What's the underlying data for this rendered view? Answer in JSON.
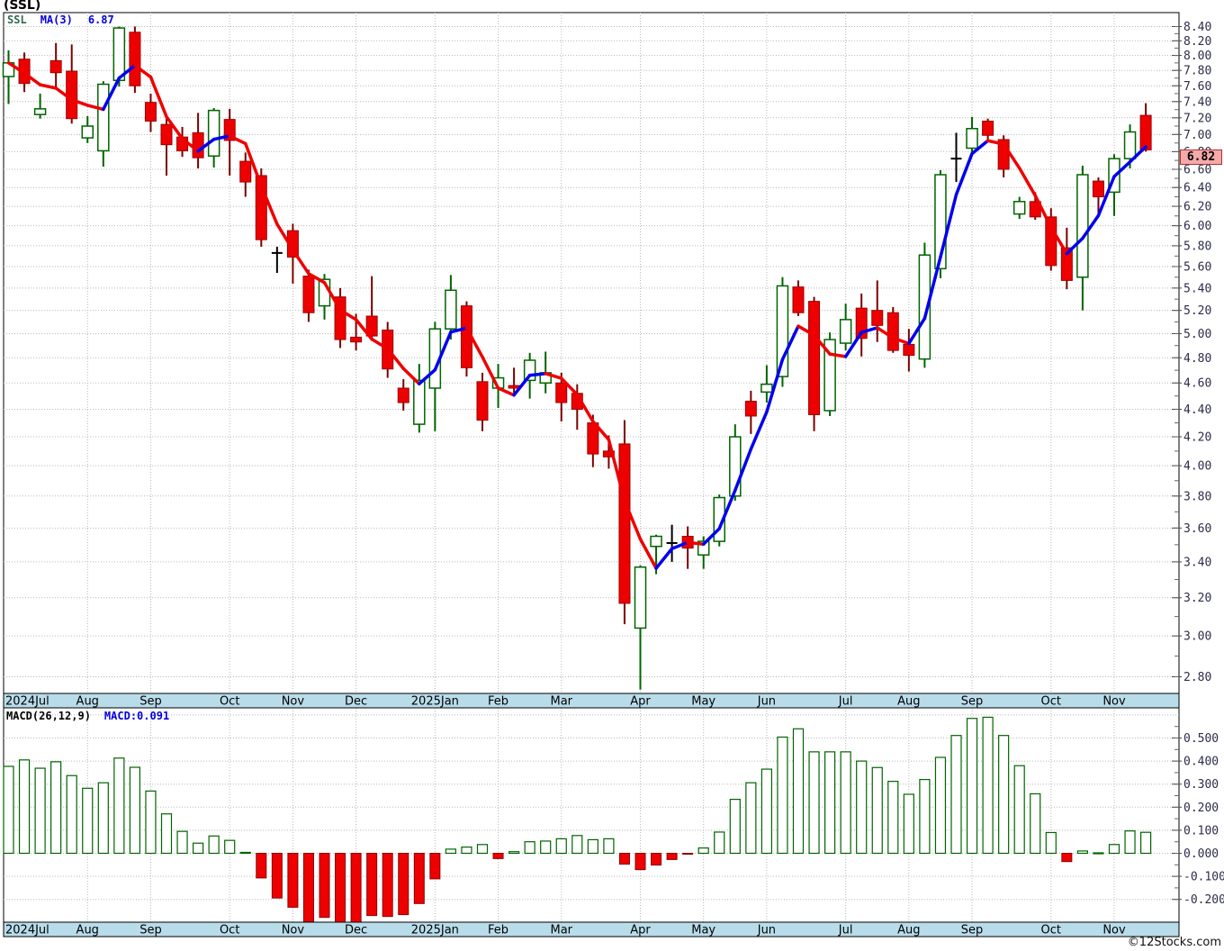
{
  "title": "(SSL)",
  "legend": {
    "symbol": "SSL",
    "ma_label": "MA(3)",
    "ma_value": "6.87"
  },
  "price_badge": "6.82",
  "macd_header": {
    "name": "MACD(26,12,9)",
    "value": "MACD:0.091"
  },
  "watermark": "©12Stocks.com",
  "colors": {
    "up_outline": "#006400",
    "down_fill": "#ee0000",
    "down_outline": "#990000",
    "down_wick": "#7a0000",
    "doji": "#000000",
    "ma_up": "#0000ee",
    "ma_down": "#ee0000",
    "band_bg": "#b9dcea",
    "grid": "#b8b8b8",
    "tick_text": "#2c2c4a",
    "badge_bg": "#f6a9a9",
    "badge_border": "#aa3333"
  },
  "chart_data": [
    {
      "type": "candlestick",
      "symbol": "SSL",
      "months": [
        {
          "label": "2024Jul",
          "bar": 0
        },
        {
          "label": "Aug",
          "bar": 5
        },
        {
          "label": "Sep",
          "bar": 9
        },
        {
          "label": "Oct",
          "bar": 14
        },
        {
          "label": "Nov",
          "bar": 18
        },
        {
          "label": "Dec",
          "bar": 22
        },
        {
          "label": "2025Jan",
          "bar": 27
        },
        {
          "label": "Feb",
          "bar": 31
        },
        {
          "label": "Mar",
          "bar": 35
        },
        {
          "label": "Apr",
          "bar": 40
        },
        {
          "label": "May",
          "bar": 44
        },
        {
          "label": "Jun",
          "bar": 48
        },
        {
          "label": "Jul",
          "bar": 53
        },
        {
          "label": "Aug",
          "bar": 57
        },
        {
          "label": "Sep",
          "bar": 61
        },
        {
          "label": "Oct",
          "bar": 66
        },
        {
          "label": "Nov",
          "bar": 70
        }
      ],
      "y_axis": {
        "scale": "log",
        "min": 2.8,
        "max": 8.4,
        "label_step": 0.2,
        "minor_tick_step": 0.1,
        "tick_labels": [
          "8.40",
          "8.20",
          "8.00",
          "7.80",
          "7.60",
          "7.40",
          "7.20",
          "7.00",
          "6.80",
          "6.60",
          "6.40",
          "6.20",
          "6.00",
          "5.80",
          "5.60",
          "5.40",
          "5.20",
          "5.00",
          "4.80",
          "4.60",
          "4.40",
          "4.20",
          "4.00",
          "3.80",
          "3.60",
          "3.40",
          "3.20",
          "3.00",
          "2.80"
        ]
      },
      "overlay": {
        "name": "MA(3)",
        "period": 3,
        "last_value": "6.87"
      },
      "last_close": 6.82,
      "ohlc": [
        [
          7.72,
          8.07,
          7.37,
          7.9
        ],
        [
          7.95,
          8.04,
          7.52,
          7.63
        ],
        [
          7.24,
          7.5,
          7.19,
          7.31
        ],
        [
          7.93,
          8.17,
          7.56,
          7.77
        ],
        [
          7.79,
          8.15,
          7.13,
          7.19
        ],
        [
          6.96,
          7.22,
          6.9,
          7.1
        ],
        [
          6.81,
          7.66,
          6.63,
          7.62
        ],
        [
          7.67,
          8.4,
          7.59,
          8.38
        ],
        [
          8.32,
          8.4,
          7.51,
          7.6
        ],
        [
          7.39,
          7.5,
          7.03,
          7.16
        ],
        [
          7.12,
          7.22,
          6.53,
          6.88
        ],
        [
          6.97,
          7.09,
          6.74,
          6.81
        ],
        [
          7.02,
          7.26,
          6.61,
          6.73
        ],
        [
          6.75,
          7.32,
          6.62,
          7.29
        ],
        [
          7.18,
          7.31,
          6.53,
          6.93
        ],
        [
          6.69,
          6.79,
          6.3,
          6.46
        ],
        [
          6.53,
          6.61,
          5.79,
          5.86
        ],
        [
          5.73,
          5.79,
          5.54,
          5.73
        ],
        [
          5.95,
          6.02,
          5.44,
          5.69
        ],
        [
          5.51,
          5.57,
          5.1,
          5.18
        ],
        [
          5.24,
          5.53,
          5.12,
          5.48
        ],
        [
          5.32,
          5.4,
          4.88,
          4.95
        ],
        [
          4.97,
          5.17,
          4.86,
          4.93
        ],
        [
          5.15,
          5.51,
          4.94,
          4.98
        ],
        [
          5.03,
          5.1,
          4.64,
          4.71
        ],
        [
          4.56,
          4.63,
          4.39,
          4.45
        ],
        [
          4.29,
          4.75,
          4.23,
          4.62
        ],
        [
          4.56,
          5.1,
          4.24,
          5.04
        ],
        [
          5.04,
          5.52,
          4.95,
          5.38
        ],
        [
          5.24,
          5.28,
          4.65,
          4.72
        ],
        [
          4.61,
          4.68,
          4.24,
          4.32
        ],
        [
          4.56,
          4.75,
          4.41,
          4.64
        ],
        [
          4.58,
          4.72,
          4.5,
          4.56
        ],
        [
          4.62,
          4.84,
          4.48,
          4.78
        ],
        [
          4.6,
          4.85,
          4.52,
          4.68
        ],
        [
          4.6,
          4.68,
          4.31,
          4.45
        ],
        [
          4.52,
          4.59,
          4.25,
          4.4
        ],
        [
          4.3,
          4.36,
          3.99,
          4.08
        ],
        [
          4.1,
          4.21,
          3.98,
          4.06
        ],
        [
          4.15,
          4.32,
          3.06,
          3.17
        ],
        [
          3.04,
          3.38,
          2.74,
          3.37
        ],
        [
          3.49,
          3.56,
          3.33,
          3.55
        ],
        [
          3.51,
          3.62,
          3.4,
          3.51
        ],
        [
          3.55,
          3.61,
          3.36,
          3.48
        ],
        [
          3.44,
          3.55,
          3.36,
          3.52
        ],
        [
          3.52,
          3.81,
          3.49,
          3.79
        ],
        [
          3.8,
          4.29,
          3.77,
          4.2
        ],
        [
          4.46,
          4.54,
          4.22,
          4.35
        ],
        [
          4.53,
          4.74,
          4.45,
          4.59
        ],
        [
          4.65,
          5.5,
          4.57,
          5.42
        ],
        [
          5.41,
          5.47,
          5.15,
          5.18
        ],
        [
          5.28,
          5.32,
          4.24,
          4.36
        ],
        [
          4.39,
          5.01,
          4.35,
          4.95
        ],
        [
          4.92,
          5.26,
          4.86,
          5.12
        ],
        [
          5.22,
          5.35,
          4.81,
          4.96
        ],
        [
          5.2,
          5.47,
          4.93,
          5.07
        ],
        [
          5.18,
          5.23,
          4.84,
          4.86
        ],
        [
          4.91,
          5.04,
          4.69,
          4.82
        ],
        [
          4.79,
          5.83,
          4.72,
          5.71
        ],
        [
          5.58,
          6.59,
          5.49,
          6.54
        ],
        [
          6.72,
          7.02,
          6.46,
          6.72
        ],
        [
          6.84,
          7.21,
          6.79,
          7.07
        ],
        [
          7.16,
          7.19,
          6.94,
          6.99
        ],
        [
          6.94,
          6.99,
          6.51,
          6.6
        ],
        [
          6.12,
          6.3,
          6.07,
          6.25
        ],
        [
          6.25,
          6.35,
          6.06,
          6.09
        ],
        [
          6.09,
          6.18,
          5.56,
          5.61
        ],
        [
          5.78,
          5.98,
          5.39,
          5.47
        ],
        [
          5.5,
          6.64,
          5.2,
          6.54
        ],
        [
          6.47,
          6.51,
          6.09,
          6.3
        ],
        [
          6.35,
          6.77,
          6.1,
          6.72
        ],
        [
          6.72,
          7.12,
          6.61,
          7.03
        ],
        [
          7.23,
          7.38,
          6.8,
          6.82
        ]
      ]
    },
    {
      "type": "bar",
      "name": "MACD(26,12,9)",
      "current_label": "MACD:0.091",
      "y_axis": {
        "label_step": 0.1,
        "minor_tick_step": 0.05,
        "grid_extra": [
          0.6
        ],
        "tick_labels": [
          "0.500",
          "0.400",
          "0.300",
          "0.200",
          "0.100",
          "0.000",
          "-0.100",
          "-0.200"
        ]
      },
      "values": [
        0.377,
        0.405,
        0.369,
        0.397,
        0.337,
        0.282,
        0.306,
        0.413,
        0.373,
        0.27,
        0.171,
        0.095,
        0.044,
        0.075,
        0.056,
        0.004,
        -0.107,
        -0.194,
        -0.234,
        -0.298,
        -0.278,
        -0.302,
        -0.306,
        -0.27,
        -0.274,
        -0.266,
        -0.218,
        -0.111,
        0.018,
        0.027,
        0.038,
        -0.023,
        0.007,
        0.05,
        0.053,
        0.063,
        0.077,
        0.059,
        0.063,
        -0.047,
        -0.071,
        -0.051,
        -0.027,
        -0.004,
        0.023,
        0.092,
        0.234,
        0.306,
        0.365,
        0.504,
        0.54,
        0.44,
        0.44,
        0.44,
        0.4,
        0.372,
        0.312,
        0.256,
        0.32,
        0.416,
        0.511,
        0.585,
        0.59,
        0.511,
        0.38,
        0.258,
        0.09,
        -0.036,
        0.01,
        0.002,
        0.038,
        0.097,
        0.091
      ]
    }
  ]
}
